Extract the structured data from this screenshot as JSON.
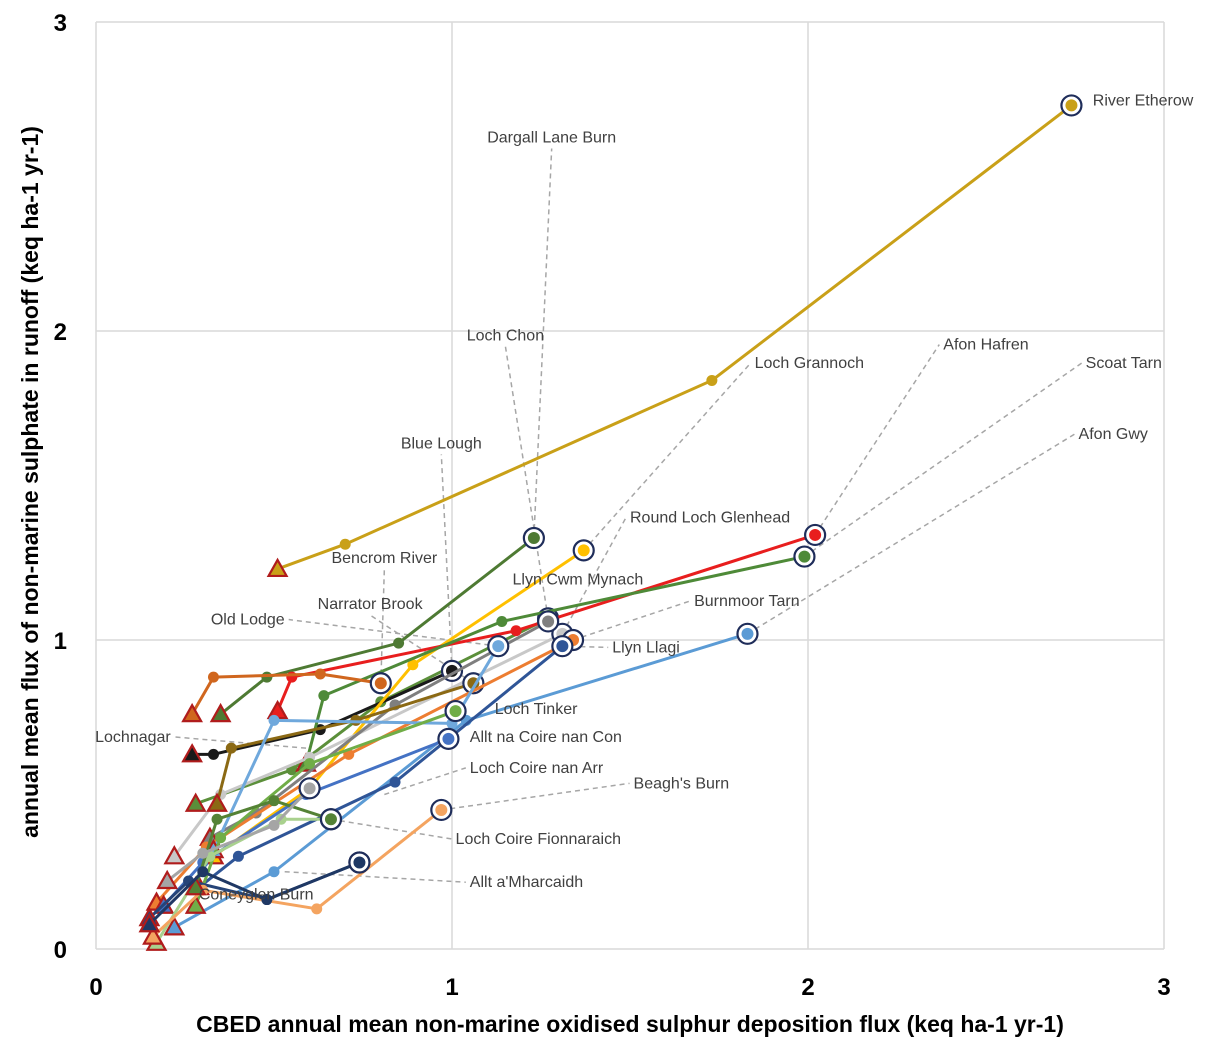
{
  "chart_data": {
    "type": "line",
    "xlabel": "CBED annual mean non-marine oxidised sulphur deposition flux (keq ha-1 yr-1)",
    "ylabel": "annual mean flux of non-marine sulphate in runoff (keq ha-1 yr-1)",
    "xlim": [
      0,
      3
    ],
    "ylim": [
      0,
      3
    ],
    "x_ticks": [
      "0",
      "1",
      "2",
      "3"
    ],
    "y_ticks": [
      "0",
      "1",
      "2",
      "3"
    ],
    "grid": true,
    "legend": "none",
    "markers": {
      "start": "triangle with dark-red outline (latest period)",
      "end": "circle with navy outline (earliest period)"
    },
    "series": [
      {
        "name": "River Etherow",
        "color": "#C9A018",
        "points": [
          [
            0.51,
            1.23
          ],
          [
            0.7,
            1.31
          ],
          [
            1.73,
            1.84
          ],
          [
            2.74,
            2.73
          ]
        ],
        "label_at": [
          2.74,
          2.73
        ]
      },
      {
        "name": "Dargall Lane Burn",
        "color": "#4E7A33",
        "points": [
          [
            0.35,
            0.76
          ],
          [
            0.48,
            0.88
          ],
          [
            0.85,
            0.99
          ],
          [
            1.23,
            1.33
          ]
        ],
        "label_at": [
          1.23,
          1.33
        ]
      },
      {
        "name": "Loch Chon",
        "color": "#5B8F3A",
        "points": [
          [
            0.28,
            0.47
          ],
          [
            0.55,
            0.58
          ],
          [
            0.8,
            0.8
          ],
          [
            1.27,
            1.07
          ]
        ],
        "label_at": [
          1.27,
          1.07
        ]
      },
      {
        "name": "Blue Lough",
        "color": "#1A1A1A",
        "points": [
          [
            0.27,
            0.63
          ],
          [
            0.33,
            0.63
          ],
          [
            0.63,
            0.71
          ],
          [
            1.0,
            0.9
          ]
        ],
        "label_at": [
          1.0,
          0.9
        ]
      },
      {
        "name": "Loch Grannoch",
        "color": "#FFC000",
        "points": [
          [
            0.33,
            0.3
          ],
          [
            0.6,
            0.52
          ],
          [
            0.89,
            0.92
          ],
          [
            1.37,
            1.29
          ]
        ],
        "label_at": [
          1.37,
          1.29
        ]
      },
      {
        "name": "Afon Hafren",
        "color": "#E81E1E",
        "points": [
          [
            0.51,
            0.77
          ],
          [
            0.55,
            0.88
          ],
          [
            1.18,
            1.03
          ],
          [
            2.02,
            1.34
          ]
        ],
        "label_at": [
          2.02,
          1.34
        ]
      },
      {
        "name": "Scoat Tarn",
        "color": "#4E8A38",
        "points": [
          [
            0.59,
            0.6
          ],
          [
            0.64,
            0.82
          ],
          [
            1.14,
            1.06
          ],
          [
            1.99,
            1.27
          ]
        ],
        "label_at": [
          1.99,
          1.27
        ]
      },
      {
        "name": "Afon Gwy",
        "color": "#5B9BD5",
        "points": [
          [
            0.22,
            0.07
          ],
          [
            0.5,
            0.25
          ],
          [
            1.04,
            0.74
          ],
          [
            1.83,
            1.02
          ]
        ],
        "label_at": [
          1.83,
          1.02
        ]
      },
      {
        "name": "Round Loch Glenhead",
        "color": "#C8C8C8",
        "points": [
          [
            0.22,
            0.3
          ],
          [
            0.35,
            0.5
          ],
          [
            0.6,
            0.62
          ],
          [
            1.31,
            1.02
          ]
        ],
        "label_at": [
          1.31,
          1.02
        ]
      },
      {
        "name": "Bencrom River",
        "color": "#D0661E",
        "points": [
          [
            0.27,
            0.76
          ],
          [
            0.33,
            0.88
          ],
          [
            0.63,
            0.89
          ],
          [
            0.8,
            0.86
          ]
        ],
        "label_at": [
          0.8,
          0.86
        ]
      },
      {
        "name": "Llyn Cwm Mynach",
        "color": "#7F7F7F",
        "points": [
          [
            0.32,
            0.36
          ],
          [
            0.45,
            0.44
          ],
          [
            0.84,
            0.79
          ],
          [
            1.27,
            1.06
          ]
        ],
        "label_at": [
          1.27,
          1.06
        ]
      },
      {
        "name": "Narrator Brook",
        "color": "#8B6914",
        "points": [
          [
            0.34,
            0.47
          ],
          [
            0.38,
            0.65
          ],
          [
            0.73,
            0.74
          ],
          [
            1.06,
            0.86
          ]
        ],
        "label_at": [
          1.06,
          0.86
        ]
      },
      {
        "name": "Burnmoor Tarn",
        "color": "#ED7D31",
        "points": [
          [
            0.17,
            0.15
          ],
          [
            0.31,
            0.33
          ],
          [
            0.71,
            0.63
          ],
          [
            1.34,
            1.0
          ]
        ],
        "label_at": [
          1.34,
          1.0
        ]
      },
      {
        "name": "Old Lodge",
        "color": "#6FA8DC",
        "points": [
          [
            0.33,
            0.32
          ],
          [
            0.5,
            0.74
          ],
          [
            1.0,
            0.73
          ],
          [
            1.13,
            0.98
          ]
        ],
        "label_at": [
          1.13,
          0.98
        ]
      },
      {
        "name": "Llyn Llagi",
        "color": "#2F5597",
        "points": [
          [
            0.29,
            0.2
          ],
          [
            0.4,
            0.3
          ],
          [
            0.84,
            0.54
          ],
          [
            1.31,
            0.98
          ]
        ],
        "label_at": [
          1.31,
          0.98
        ]
      },
      {
        "name": "Loch Tinker",
        "color": "#70AD47",
        "points": [
          [
            0.28,
            0.14
          ],
          [
            0.35,
            0.36
          ],
          [
            0.6,
            0.6
          ],
          [
            1.01,
            0.77
          ]
        ],
        "label_at": [
          1.01,
          0.77
        ]
      },
      {
        "name": "Lochnagar",
        "color": "#4472C4",
        "points": [
          [
            0.19,
            0.14
          ],
          [
            0.3,
            0.28
          ],
          [
            0.59,
            0.5
          ],
          [
            0.99,
            0.68
          ]
        ],
        "label_at": [
          0.59,
          0.65
        ]
      },
      {
        "name": "Allt na Coire nan Con",
        "color": "#264478",
        "points": [
          [
            0.15,
            0.1
          ],
          [
            0.26,
            0.22
          ],
          [
            0.48,
            0.16
          ],
          [
            0.74,
            0.28
          ]
        ],
        "label_at": [
          0.99,
          0.68
        ]
      },
      {
        "name": "Loch Coire nan Arr",
        "color": "#A9D18E",
        "points": [
          [
            0.17,
            0.02
          ],
          [
            0.32,
            0.3
          ],
          [
            0.52,
            0.42
          ],
          [
            0.66,
            0.42
          ]
        ],
        "label_at": [
          0.81,
          0.5
        ]
      },
      {
        "name": "Beagh's Burn",
        "color": "#F4A460",
        "points": [
          [
            0.16,
            0.04
          ],
          [
            0.3,
            0.19
          ],
          [
            0.62,
            0.13
          ],
          [
            0.97,
            0.45
          ]
        ],
        "label_at": [
          0.97,
          0.45
        ]
      },
      {
        "name": "Loch Coire Fionnaraich",
        "color": "#548235",
        "points": [
          [
            0.28,
            0.2
          ],
          [
            0.34,
            0.42
          ],
          [
            0.5,
            0.48
          ],
          [
            0.66,
            0.42
          ]
        ],
        "label_at": [
          0.66,
          0.42
        ]
      },
      {
        "name": "Allt a'Mharcaidh",
        "color": "#1F3864",
        "points": [
          [
            0.15,
            0.08
          ],
          [
            0.3,
            0.25
          ],
          [
            0.48,
            0.16
          ],
          [
            0.74,
            0.28
          ]
        ],
        "label_at": [
          0.53,
          0.25
        ]
      },
      {
        "name": "Coneyglen Burn",
        "color": "#A5A5A5",
        "points": [
          [
            0.2,
            0.22
          ],
          [
            0.3,
            0.31
          ],
          [
            0.5,
            0.4
          ],
          [
            0.6,
            0.52
          ]
        ],
        "label_at": [
          0.2,
          0.22
        ]
      }
    ],
    "annotations": [
      {
        "text": "River Etherow",
        "at": [
          2.74,
          2.73
        ],
        "text_at": [
          2.8,
          2.73
        ],
        "anchor": "start",
        "leader": false
      },
      {
        "text": "Dargall Lane Burn",
        "at": [
          1.23,
          1.33
        ],
        "text_at": [
          1.28,
          2.61
        ],
        "anchor": "middle",
        "leader": true
      },
      {
        "text": "Loch Chon",
        "at": [
          1.27,
          1.07
        ],
        "text_at": [
          1.15,
          1.97
        ],
        "anchor": "middle",
        "leader": true
      },
      {
        "text": "Loch Grannoch",
        "at": [
          1.37,
          1.29
        ],
        "text_at": [
          1.85,
          1.88
        ],
        "anchor": "start",
        "leader": true
      },
      {
        "text": "Afon Hafren",
        "at": [
          2.02,
          1.34
        ],
        "text_at": [
          2.38,
          1.94
        ],
        "anchor": "start",
        "leader": true
      },
      {
        "text": "Scoat Tarn",
        "at": [
          1.99,
          1.27
        ],
        "text_at": [
          2.78,
          1.88
        ],
        "anchor": "start",
        "leader": true
      },
      {
        "text": "Afon Gwy",
        "at": [
          1.83,
          1.02
        ],
        "text_at": [
          2.76,
          1.65
        ],
        "anchor": "start",
        "leader": true
      },
      {
        "text": "Blue Lough",
        "at": [
          1.0,
          0.9
        ],
        "text_at": [
          0.97,
          1.62
        ],
        "anchor": "middle",
        "leader": true
      },
      {
        "text": "Round Loch Glenhead",
        "at": [
          1.31,
          1.02
        ],
        "text_at": [
          1.5,
          1.38
        ],
        "anchor": "start",
        "leader": true
      },
      {
        "text": "Bencrom River",
        "at": [
          0.8,
          0.86
        ],
        "text_at": [
          0.81,
          1.25
        ],
        "anchor": "middle",
        "leader": true
      },
      {
        "text": "Llyn Cwm Mynach",
        "at": [
          1.27,
          1.06
        ],
        "text_at": [
          1.17,
          1.18
        ],
        "anchor": "start",
        "leader": false
      },
      {
        "text": "Narrator Brook",
        "at": [
          1.06,
          0.86
        ],
        "text_at": [
          0.77,
          1.1
        ],
        "anchor": "middle",
        "leader": true
      },
      {
        "text": "Burnmoor Tarn",
        "at": [
          1.34,
          1.0
        ],
        "text_at": [
          1.68,
          1.11
        ],
        "anchor": "start",
        "leader": true
      },
      {
        "text": "Old Lodge",
        "at": [
          1.13,
          0.98
        ],
        "text_at": [
          0.53,
          1.05
        ],
        "anchor": "end",
        "leader": true
      },
      {
        "text": "Llyn Llagi",
        "at": [
          1.31,
          0.98
        ],
        "text_at": [
          1.45,
          0.96
        ],
        "anchor": "start",
        "leader": true
      },
      {
        "text": "Loch Tinker",
        "at": [
          1.01,
          0.77
        ],
        "text_at": [
          1.12,
          0.76
        ],
        "anchor": "start",
        "leader": false
      },
      {
        "text": "Lochnagar",
        "at": [
          0.59,
          0.65
        ],
        "text_at": [
          0.21,
          0.67
        ],
        "anchor": "end",
        "leader": true
      },
      {
        "text": "Allt na Coire nan Con",
        "at": [
          0.99,
          0.68
        ],
        "text_at": [
          1.05,
          0.67
        ],
        "anchor": "start",
        "leader": false
      },
      {
        "text": "Loch Coire nan Arr",
        "at": [
          0.81,
          0.5
        ],
        "text_at": [
          1.05,
          0.57
        ],
        "anchor": "start",
        "leader": true
      },
      {
        "text": "Beagh's Burn",
        "at": [
          0.97,
          0.45
        ],
        "text_at": [
          1.51,
          0.52
        ],
        "anchor": "start",
        "leader": true
      },
      {
        "text": "Loch Coire Fionnaraich",
        "at": [
          0.66,
          0.42
        ],
        "text_at": [
          1.01,
          0.34
        ],
        "anchor": "start",
        "leader": true
      },
      {
        "text": "Allt a'Mharcaidh",
        "at": [
          0.53,
          0.25
        ],
        "text_at": [
          1.05,
          0.2
        ],
        "anchor": "start",
        "leader": true
      },
      {
        "text": "Coneyglen Burn",
        "at": [
          0.2,
          0.22
        ],
        "text_at": [
          0.45,
          0.16
        ],
        "anchor": "middle",
        "leader": false
      }
    ]
  }
}
